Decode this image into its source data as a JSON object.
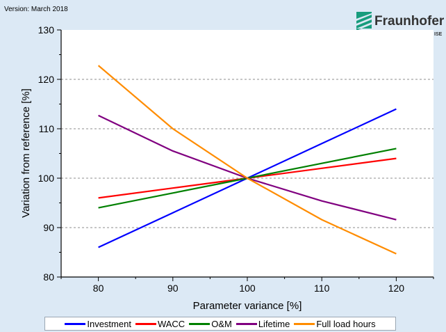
{
  "version_label": "Version: March 2018",
  "logo": {
    "name": "Fraunhofer",
    "sub": "ISE",
    "color": "#179c7d"
  },
  "chart_data": {
    "type": "line",
    "title": "",
    "xlabel": "Parameter variance [%]",
    "ylabel": "Variation from reference [%]",
    "x": [
      80,
      90,
      100,
      110,
      120
    ],
    "xlim": [
      75,
      125
    ],
    "ylim": [
      80,
      130
    ],
    "xticks": [
      80,
      90,
      100,
      110,
      120
    ],
    "yticks": [
      80,
      90,
      100,
      110,
      120,
      130
    ],
    "grid": "horizontal dashed",
    "legend_position": "bottom",
    "series": [
      {
        "name": "Investment",
        "color": "#0000ff",
        "values": [
          86,
          93,
          100,
          107,
          114
        ]
      },
      {
        "name": "WACC",
        "color": "#ff0000",
        "values": [
          96,
          98,
          100,
          102,
          104
        ]
      },
      {
        "name": "O&M",
        "color": "#008000",
        "values": [
          94,
          97,
          100,
          103,
          106
        ]
      },
      {
        "name": "Lifetime",
        "color": "#800080",
        "values": [
          112.7,
          105.5,
          100,
          95.4,
          91.6
        ]
      },
      {
        "name": "Full load hours",
        "color": "#ff8c00",
        "values": [
          122.8,
          110,
          100,
          91.6,
          84.7
        ]
      }
    ]
  }
}
